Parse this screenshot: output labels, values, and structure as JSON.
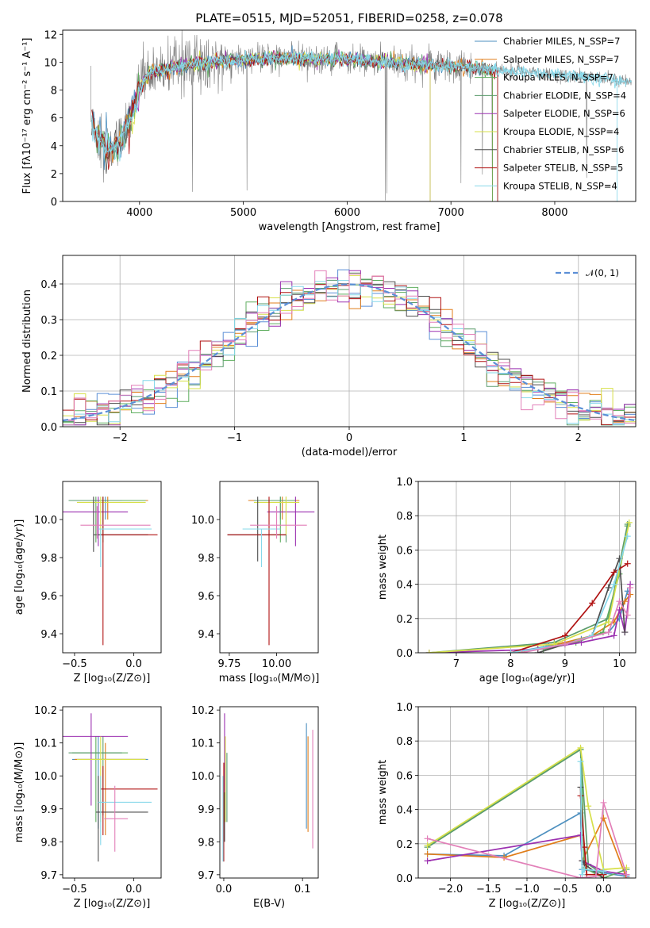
{
  "figure": {
    "title": "PLATE=0515, MJD=52051, FIBERID=0258, z=0.078"
  },
  "colors": {
    "data": "#808080",
    "chabrier_miles": "#4c8fbf",
    "salpeter_miles": "#e07d1a",
    "kroupa_miles": "#5fae5f",
    "chabrier_elodie": "#5b9c6d",
    "salpeter_elodie": "#9b30b0",
    "kroupa_elodie": "#d7e04a",
    "chabrier_stelib": "#4d4d4d",
    "salpeter_stelib": "#b01212",
    "kroupa_stelib": "#86d8ea",
    "blue_hist": "#5b8fd6",
    "pink": "#e27fb8",
    "normal": "#5b8fd6"
  },
  "chart_data": [
    {
      "id": "spectrum",
      "type": "line",
      "xlabel": "wavelength [Angstrom, rest frame]",
      "ylabel": "Flux [fλ10⁻¹⁷ erg cm⁻² s⁻¹ A⁻¹]",
      "xlim": [
        3260,
        8780
      ],
      "ylim": [
        0,
        12.3
      ],
      "xticks": [
        "4000",
        "5000",
        "6000",
        "7000",
        "8000"
      ],
      "yticks": [
        "0",
        "2",
        "4",
        "6",
        "8",
        "10",
        "12"
      ],
      "continuum": [
        [
          3530,
          6.0
        ],
        [
          3600,
          4.5
        ],
        [
          3700,
          3.4
        ],
        [
          3800,
          4.2
        ],
        [
          3900,
          5.8
        ],
        [
          3950,
          6.6
        ],
        [
          4000,
          8.2
        ],
        [
          4100,
          9.3
        ],
        [
          4300,
          9.5
        ],
        [
          4500,
          9.9
        ],
        [
          5000,
          10.2
        ],
        [
          5500,
          10.3
        ],
        [
          6000,
          10.2
        ],
        [
          6500,
          9.9
        ],
        [
          7000,
          9.7
        ],
        [
          7500,
          9.4
        ],
        [
          8000,
          9.1
        ],
        [
          8500,
          8.8
        ],
        [
          8740,
          8.6
        ]
      ],
      "legend": [
        {
          "label": "Chabrier MILES, N_SSP=7",
          "color": "chabrier_miles"
        },
        {
          "label": "Salpeter MILES, N_SSP=7",
          "color": "salpeter_miles"
        },
        {
          "label": "Kroupa MILES, N_SSP=7",
          "color": "kroupa_miles"
        },
        {
          "label": "Chabrier ELODIE, N_SSP=4",
          "color": "chabrier_elodie"
        },
        {
          "label": "Salpeter ELODIE, N_SSP=6",
          "color": "salpeter_elodie"
        },
        {
          "label": "Kroupa ELODIE, N_SSP=4",
          "color": "kroupa_elodie"
        },
        {
          "label": "Chabrier STELIB, N_SSP=6",
          "color": "chabrier_stelib"
        },
        {
          "label": "Salpeter STELIB, N_SSP=5",
          "color": "salpeter_stelib"
        },
        {
          "label": "Kroupa STELIB, N_SSP=4",
          "color": "kroupa_stelib"
        }
      ]
    },
    {
      "id": "residuals",
      "type": "line",
      "xlabel": "(data-model)/error",
      "ylabel": "Normed distribution",
      "xlim": [
        -2.5,
        2.5
      ],
      "ylim": [
        0,
        0.48
      ],
      "xticks": [
        "−2",
        "−1",
        "0",
        "1",
        "2"
      ],
      "yticks": [
        "0.0",
        "0.1",
        "0.2",
        "0.3",
        "0.4"
      ],
      "legend_label": "𝒩(0, 1)",
      "bin_width": 0.1,
      "bin_start": -2.5
    },
    {
      "id": "age_vs_Z",
      "type": "scatter",
      "xlabel": "Z [log₁₀(Z/Z⊙)]",
      "ylabel": "age  [log₁₀(age/yr)]",
      "xlim": [
        -0.6,
        0.23
      ],
      "ylim": [
        9.3,
        10.2
      ],
      "xticks": [
        "−0.5",
        "0.0"
      ],
      "yticks": [
        "9.4",
        "9.6",
        "9.8",
        "10.0"
      ],
      "points": [
        {
          "color": "chabrier_miles",
          "x": -0.24,
          "xl": -0.52,
          "xh": -0.02,
          "y": 10.1,
          "yl": 10.0,
          "yh": 10.12
        },
        {
          "color": "salpeter_miles",
          "x": -0.22,
          "xl": -0.5,
          "xh": 0.12,
          "y": 10.1,
          "yl": 10.0,
          "yh": 10.12
        },
        {
          "color": "kroupa_miles",
          "x": -0.32,
          "xl": -0.52,
          "xh": 0.1,
          "y": 10.1,
          "yl": 9.88,
          "yh": 10.12
        },
        {
          "color": "chabrier_elodie",
          "x": -0.26,
          "xl": -0.55,
          "xh": -0.1,
          "y": 10.1,
          "yl": 9.88,
          "yh": 10.12
        },
        {
          "color": "salpeter_elodie",
          "x": -0.3,
          "xl": -0.6,
          "xh": -0.05,
          "y": 10.04,
          "yl": 9.86,
          "yh": 10.12
        },
        {
          "color": "kroupa_elodie",
          "x": -0.28,
          "xl": -0.48,
          "xh": 0.1,
          "y": 10.09,
          "yl": 9.92,
          "yh": 10.12
        },
        {
          "color": "chabrier_stelib",
          "x": -0.34,
          "xl": -0.34,
          "xh": 0.12,
          "y": 9.92,
          "yl": 9.83,
          "yh": 10.12
        },
        {
          "color": "salpeter_stelib",
          "x": -0.26,
          "xl": -0.28,
          "xh": 0.2,
          "y": 9.92,
          "yl": 9.34,
          "yh": 10.12
        },
        {
          "color": "kroupa_stelib",
          "x": -0.28,
          "xl": -0.3,
          "xh": 0.15,
          "y": 9.95,
          "yl": 9.75,
          "yh": 9.95
        },
        {
          "color": "pink",
          "x": -0.31,
          "xl": -0.45,
          "xh": 0.14,
          "y": 9.97,
          "yl": 9.9,
          "yh": 10.07
        }
      ]
    },
    {
      "id": "age_vs_mass",
      "type": "scatter",
      "xlabel": "mass [log₁₀(M/M⊙)]",
      "ylabel": "",
      "xlim": [
        9.7,
        10.22
      ],
      "ylim": [
        9.3,
        10.2
      ],
      "xticks": [
        "9.75",
        "10.00"
      ],
      "yticks": [
        "9.4",
        "9.6",
        "9.8",
        "10.0"
      ],
      "points": [
        {
          "color": "chabrier_miles",
          "x": 10.02,
          "xl": 9.88,
          "xh": 10.12,
          "y": 10.1,
          "yl": 10.0,
          "yh": 10.12
        },
        {
          "color": "salpeter_miles",
          "x": 10.03,
          "xl": 9.85,
          "xh": 10.12,
          "y": 10.1,
          "yl": 10.0,
          "yh": 10.12
        },
        {
          "color": "kroupa_miles",
          "x": 10.02,
          "xl": 9.9,
          "xh": 10.1,
          "y": 10.1,
          "yl": 9.88,
          "yh": 10.12
        },
        {
          "color": "chabrier_elodie",
          "x": 10.05,
          "xl": 9.88,
          "xh": 10.1,
          "y": 10.1,
          "yl": 9.88,
          "yh": 10.12
        },
        {
          "color": "salpeter_elodie",
          "x": 10.1,
          "xl": 9.95,
          "xh": 10.2,
          "y": 10.04,
          "yl": 9.86,
          "yh": 10.12
        },
        {
          "color": "kroupa_elodie",
          "x": 10.05,
          "xl": 9.88,
          "xh": 10.12,
          "y": 10.09,
          "yl": 9.92,
          "yh": 10.12
        },
        {
          "color": "chabrier_stelib",
          "x": 9.9,
          "xl": 9.74,
          "xh": 10.05,
          "y": 9.92,
          "yl": 9.78,
          "yh": 10.12
        },
        {
          "color": "salpeter_stelib",
          "x": 9.96,
          "xl": 9.74,
          "xh": 10.05,
          "y": 9.92,
          "yl": 9.34,
          "yh": 10.12
        },
        {
          "color": "kroupa_stelib",
          "x": 9.92,
          "xl": 9.82,
          "xh": 10.02,
          "y": 9.95,
          "yl": 9.75,
          "yh": 9.95
        },
        {
          "color": "pink",
          "x": 10.0,
          "xl": 9.86,
          "xh": 10.16,
          "y": 9.97,
          "yl": 9.9,
          "yh": 10.07
        }
      ]
    },
    {
      "id": "weight_vs_age",
      "type": "line",
      "xlabel": "age  [log₁₀(age/yr)]",
      "ylabel": "mass weight",
      "xlim": [
        6.3,
        10.3
      ],
      "ylim": [
        0,
        1.0
      ],
      "xticks": [
        "7",
        "8",
        "9",
        "10"
      ],
      "yticks": [
        "0.0",
        "0.2",
        "0.4",
        "0.6",
        "0.8",
        "1.0"
      ],
      "series": [
        {
          "color": "chabrier_miles",
          "x": [
            8.0,
            8.7,
            9.3,
            9.8,
            10.0,
            10.15
          ],
          "y": [
            0.0,
            0.04,
            0.08,
            0.12,
            0.2,
            0.36
          ]
        },
        {
          "color": "salpeter_miles",
          "x": [
            8.0,
            8.5,
            9.0,
            9.5,
            9.9,
            10.1,
            10.2
          ],
          "y": [
            0.0,
            0.02,
            0.06,
            0.1,
            0.18,
            0.3,
            0.34
          ]
        },
        {
          "color": "kroupa_miles",
          "x": [
            8.6,
            9.2,
            9.7,
            10.0,
            10.15
          ],
          "y": [
            0.02,
            0.06,
            0.12,
            0.46,
            0.74
          ]
        },
        {
          "color": "chabrier_elodie",
          "x": [
            6.5,
            8.8,
            9.8,
            10.15
          ],
          "y": [
            0.0,
            0.06,
            0.2,
            0.75
          ]
        },
        {
          "color": "salpeter_elodie",
          "x": [
            6.5,
            8.5,
            9.3,
            9.9,
            10.0,
            10.1,
            10.2
          ],
          "y": [
            0.0,
            0.02,
            0.06,
            0.1,
            0.25,
            0.12,
            0.4
          ]
        },
        {
          "color": "kroupa_elodie",
          "x": [
            6.5,
            8.8,
            9.8,
            10.18
          ],
          "y": [
            0.0,
            0.05,
            0.18,
            0.76
          ]
        },
        {
          "color": "chabrier_stelib",
          "x": [
            8.5,
            9.0,
            9.5,
            9.8,
            10.0,
            10.1
          ],
          "y": [
            0.0,
            0.05,
            0.1,
            0.38,
            0.55,
            0.12
          ]
        },
        {
          "color": "salpeter_stelib",
          "x": [
            8.0,
            9.0,
            9.5,
            9.9,
            10.15
          ],
          "y": [
            0.0,
            0.1,
            0.29,
            0.47,
            0.52
          ]
        },
        {
          "color": "kroupa_stelib",
          "x": [
            8.0,
            9.0,
            9.5,
            9.9,
            10.15
          ],
          "y": [
            0.0,
            0.05,
            0.1,
            0.4,
            0.68
          ]
        },
        {
          "color": "pink",
          "x": [
            8.2,
            9.0,
            9.8,
            10.0,
            10.15,
            10.2
          ],
          "y": [
            0.0,
            0.05,
            0.12,
            0.3,
            0.22,
            0.38
          ]
        }
      ]
    },
    {
      "id": "mass_vs_Z",
      "type": "scatter",
      "xlabel": "Z [log₁₀(Z/Z⊙)]",
      "ylabel": "mass [log₁₀(M/M⊙)]",
      "xlim": [
        -0.6,
        0.23
      ],
      "ylim": [
        9.69,
        10.21
      ],
      "xticks": [
        "−0.5",
        "0.0"
      ],
      "yticks": [
        "9.7",
        "9.8",
        "9.9",
        "10.0",
        "10.1",
        "10.2"
      ],
      "points": [
        {
          "color": "chabrier_miles",
          "x": -0.3,
          "xl": -0.52,
          "xh": 0.12,
          "y": 10.05,
          "yl": 9.84,
          "yh": 10.12
        },
        {
          "color": "salpeter_miles",
          "x": -0.24,
          "xl": -0.5,
          "xh": 0.1,
          "y": 10.05,
          "yl": 9.82,
          "yh": 10.1
        },
        {
          "color": "kroupa_miles",
          "x": -0.32,
          "xl": -0.52,
          "xh": -0.05,
          "y": 10.07,
          "yl": 9.86,
          "yh": 10.12
        },
        {
          "color": "chabrier_elodie",
          "x": -0.26,
          "xl": -0.55,
          "xh": -0.1,
          "y": 10.07,
          "yl": 9.88,
          "yh": 10.12
        },
        {
          "color": "salpeter_elodie",
          "x": -0.36,
          "xl": -0.6,
          "xh": -0.05,
          "y": 10.12,
          "yl": 9.91,
          "yh": 10.19
        },
        {
          "color": "kroupa_elodie",
          "x": -0.28,
          "xl": -0.48,
          "xh": 0.1,
          "y": 10.05,
          "yl": 9.86,
          "yh": 10.12
        },
        {
          "color": "chabrier_stelib",
          "x": -0.3,
          "xl": -0.32,
          "xh": 0.12,
          "y": 9.89,
          "yl": 9.74,
          "yh": 10.0
        },
        {
          "color": "salpeter_stelib",
          "x": -0.26,
          "xl": -0.28,
          "xh": 0.2,
          "y": 9.96,
          "yl": 9.82,
          "yh": 10.03
        },
        {
          "color": "kroupa_stelib",
          "x": -0.28,
          "xl": -0.3,
          "xh": 0.15,
          "y": 9.92,
          "yl": 9.79,
          "yh": 10.0
        },
        {
          "color": "pink",
          "x": -0.16,
          "xl": -0.25,
          "xh": -0.05,
          "y": 9.87,
          "yl": 9.77,
          "yh": 9.97
        }
      ]
    },
    {
      "id": "mass_vs_ebv",
      "type": "scatter",
      "xlabel": "E(B-V)",
      "ylabel": "",
      "xlim": [
        -0.005,
        0.12
      ],
      "ylim": [
        9.69,
        10.21
      ],
      "xticks": [
        "0.0",
        "0.1"
      ],
      "yticks": [
        "9.7",
        "9.8",
        "9.9",
        "10.0",
        "10.1",
        "10.2"
      ],
      "points": [
        {
          "color": "chabrier_miles",
          "x": 0.105,
          "yl": 9.84,
          "yh": 10.16
        },
        {
          "color": "salpeter_miles",
          "x": 0.107,
          "yl": 9.83,
          "yh": 10.12
        },
        {
          "color": "pink",
          "x": 0.113,
          "yl": 9.78,
          "yh": 10.14
        },
        {
          "color": "salpeter_elodie",
          "x": 0.001,
          "yl": 9.9,
          "yh": 10.19
        },
        {
          "color": "kroupa_elodie",
          "x": 0.002,
          "yl": 9.86,
          "yh": 10.12
        },
        {
          "color": "chabrier_elodie",
          "x": 0.004,
          "yl": 9.86,
          "yh": 10.07
        },
        {
          "color": "salpeter_stelib",
          "x": 0.0,
          "yl": 9.74,
          "yh": 10.04
        },
        {
          "color": "kroupa_stelib",
          "x": -0.001,
          "yl": 9.74,
          "yh": 10.0
        },
        {
          "color": "chabrier_stelib",
          "x": 0.001,
          "yl": 9.8,
          "yh": 9.95
        }
      ]
    },
    {
      "id": "weight_vs_Z",
      "type": "line",
      "xlabel": "Z [log₁₀(Z/Z⊙)]",
      "ylabel": "mass weight",
      "xlim": [
        -2.42,
        0.42
      ],
      "ylim": [
        0,
        1.0
      ],
      "xticks": [
        "−2.0",
        "−1.5",
        "−1.0",
        "−0.5",
        "0.0"
      ],
      "yticks": [
        "0.0",
        "0.2",
        "0.4",
        "0.6",
        "0.8",
        "1.0"
      ],
      "series": [
        {
          "color": "chabrier_miles",
          "x": [
            -2.3,
            -1.3,
            -0.3,
            -0.28,
            0.0,
            0.3
          ],
          "y": [
            0.14,
            0.13,
            0.38,
            0.05,
            0.03,
            0.01
          ]
        },
        {
          "color": "salpeter_miles",
          "x": [
            -2.3,
            -1.3,
            -0.3,
            -0.28,
            0.0,
            0.3
          ],
          "y": [
            0.14,
            0.12,
            0.25,
            0.1,
            0.35,
            0.0
          ]
        },
        {
          "color": "kroupa_miles",
          "x": [
            -2.3,
            -0.3,
            -0.25,
            0.0,
            0.3
          ],
          "y": [
            0.19,
            0.75,
            0.06,
            0.0,
            0.05
          ]
        },
        {
          "color": "chabrier_elodie",
          "x": [
            -2.3,
            -0.3,
            -0.2,
            0.0
          ],
          "y": [
            0.18,
            0.75,
            0.08,
            0.02
          ]
        },
        {
          "color": "salpeter_elodie",
          "x": [
            -2.3,
            -0.3,
            -0.28,
            0.0,
            0.3
          ],
          "y": [
            0.1,
            0.25,
            0.1,
            0.04,
            0.02
          ]
        },
        {
          "color": "kroupa_elodie",
          "x": [
            -2.3,
            -0.3,
            -0.2,
            0.0,
            0.3
          ],
          "y": [
            0.19,
            0.76,
            0.42,
            0.05,
            0.06
          ]
        },
        {
          "color": "chabrier_stelib",
          "x": [
            -0.3,
            -0.28,
            -0.25,
            0.0
          ],
          "y": [
            0.53,
            0.1,
            0.08,
            0.0
          ]
        },
        {
          "color": "salpeter_stelib",
          "x": [
            -0.3,
            -0.25,
            -0.22,
            0.0
          ],
          "y": [
            0.48,
            0.18,
            0.02,
            0.02
          ]
        },
        {
          "color": "kroupa_stelib",
          "x": [
            -0.3,
            -0.28,
            -0.25,
            0.0
          ],
          "y": [
            0.68,
            0.02,
            0.05,
            0.04
          ]
        },
        {
          "color": "pink",
          "x": [
            -2.3,
            -0.3,
            -0.1,
            0.0,
            0.3
          ],
          "y": [
            0.23,
            0.0,
            0.01,
            0.44,
            0.02
          ]
        }
      ]
    }
  ]
}
